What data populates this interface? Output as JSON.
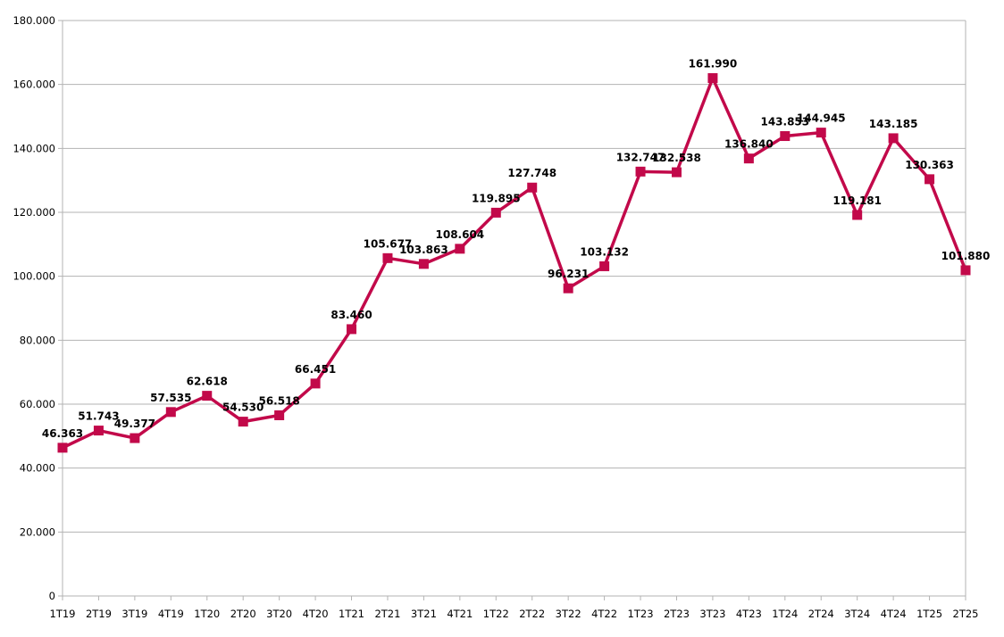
{
  "chart_data": {
    "type": "line",
    "title": "",
    "xlabel": "",
    "ylabel": "",
    "categories": [
      "1T19",
      "2T19",
      "3T19",
      "4T19",
      "1T20",
      "2T20",
      "3T20",
      "4T20",
      "1T21",
      "2T21",
      "3T21",
      "4T21",
      "1T22",
      "2T22",
      "3T22",
      "4T22",
      "1T23",
      "2T23",
      "3T23",
      "4T23",
      "1T24",
      "2T24",
      "3T24",
      "4T24",
      "1T25",
      "2T25"
    ],
    "series": [
      {
        "values": [
          46363,
          51743,
          49377,
          57535,
          62618,
          54530,
          56518,
          66451,
          83460,
          105677,
          103863,
          108604,
          119895,
          127748,
          96231,
          103132,
          132747,
          132538,
          161990,
          136840,
          143853,
          144945,
          119181,
          143185,
          130363,
          101880
        ],
        "data_labels": [
          "46.363",
          "51.743",
          "49.377",
          "57.535",
          "62.618",
          "54.530",
          "56.518",
          "66.451",
          "83.460",
          "105.677",
          "103.863",
          "108.604",
          "119.895",
          "127.748",
          "96.231",
          "103.132",
          "132.747",
          "132.538",
          "161.990",
          "136.840",
          "143.853",
          "144.945",
          "119.181",
          "143.185",
          "130.363",
          "101.880"
        ],
        "color": "#c2094a",
        "marker": "square"
      }
    ],
    "ylim": [
      0,
      180000
    ],
    "yticks": [
      0,
      20000,
      40000,
      60000,
      80000,
      100000,
      120000,
      140000,
      160000,
      180000
    ],
    "ytick_labels": [
      "0",
      "20.000",
      "40.000",
      "60.000",
      "80.000",
      "100.000",
      "120.000",
      "140.000",
      "160.000",
      "180.000"
    ],
    "grid": true,
    "grid_color": "#b3b3b3",
    "legend": "none"
  }
}
